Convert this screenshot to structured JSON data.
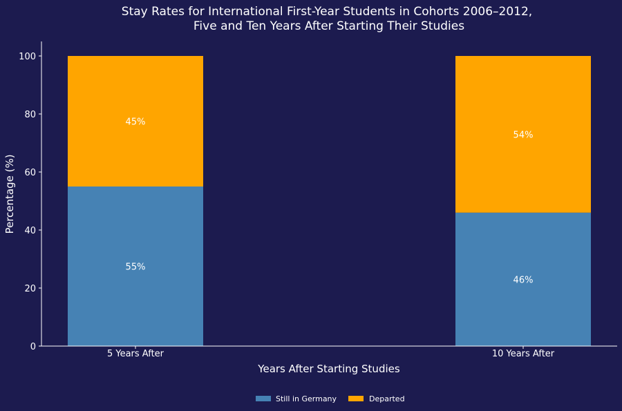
{
  "chart_data": {
    "type": "bar",
    "stacked": true,
    "title_lines": [
      "Stay Rates for International First-Year Students in Cohorts 2006–2012,",
      "Five and Ten Years After Starting Their Studies"
    ],
    "xlabel": "Years After Starting Studies",
    "ylabel": "Percentage (%)",
    "categories": [
      "5 Years After",
      "10 Years After"
    ],
    "series": [
      {
        "name": "Still in Germany",
        "values": [
          55,
          46
        ],
        "labels": [
          "55%",
          "46%"
        ],
        "color": "#4682b4"
      },
      {
        "name": "Departed",
        "values": [
          45,
          54
        ],
        "labels": [
          "45%",
          "54%"
        ],
        "color": "#ffa500"
      }
    ],
    "ylim": [
      0,
      100
    ],
    "yticks": [
      "0",
      "20",
      "40",
      "60",
      "80",
      "100"
    ],
    "grid": false,
    "legend_position": "bottom-center",
    "background_color": "#1c1b4f",
    "axis_color": "#ffffff"
  }
}
